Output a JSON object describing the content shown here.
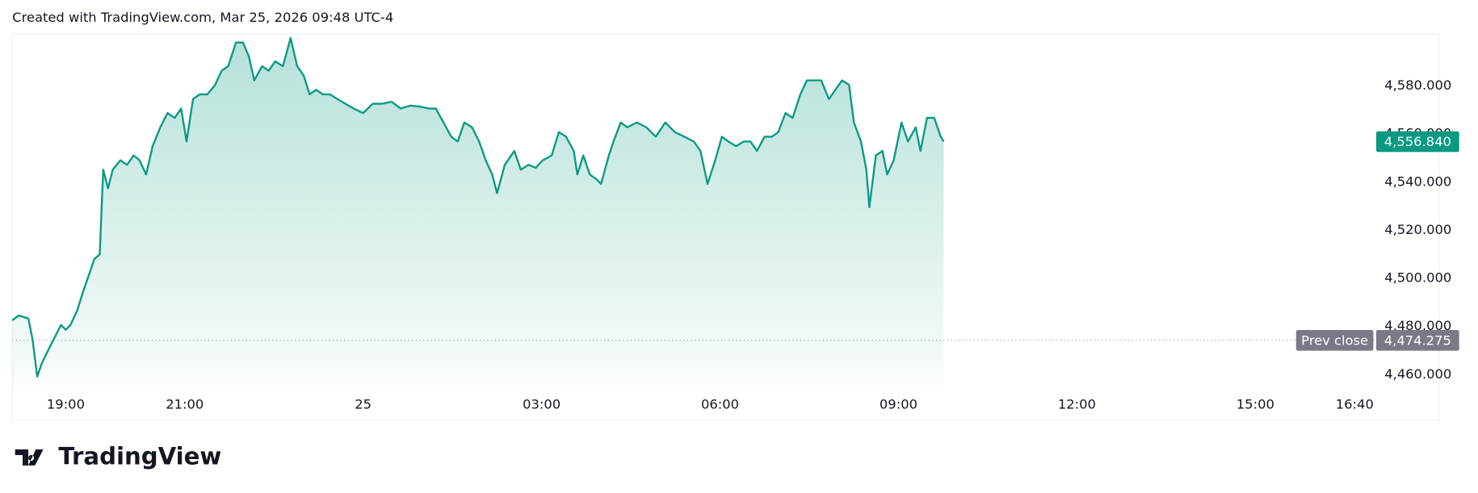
{
  "chart_data": {
    "type": "area-line",
    "title": "Created with TradingView.com, Mar 25, 2026 09:48 UTC-4",
    "brand": "TradingView",
    "color": "#089981",
    "grid": false,
    "xlim": [
      18.1,
      41.0
    ],
    "ylim": [
      4454,
      4601.5
    ],
    "xticks": [
      {
        "value": 19,
        "label": "19:00"
      },
      {
        "value": 21,
        "label": "21:00"
      },
      {
        "value": 24,
        "label": "25"
      },
      {
        "value": 27,
        "label": "03:00"
      },
      {
        "value": 30,
        "label": "06:00"
      },
      {
        "value": 33,
        "label": "09:00"
      },
      {
        "value": 36,
        "label": "12:00"
      },
      {
        "value": 39,
        "label": "15:00"
      },
      {
        "value": 40.67,
        "label": "16:40"
      }
    ],
    "yticks": [
      {
        "value": 4460,
        "label": "4,460.000"
      },
      {
        "value": 4480,
        "label": "4,480.000"
      },
      {
        "value": 4500,
        "label": "4,500.000"
      },
      {
        "value": 4520,
        "label": "4,520.000"
      },
      {
        "value": 4540,
        "label": "4,540.000"
      },
      {
        "value": 4560,
        "label": "4,560.000"
      },
      {
        "value": 4580,
        "label": "4,580.000"
      }
    ],
    "last_price": {
      "value": 4556.84,
      "label": "4,556.840"
    },
    "prev_close": {
      "name": "Prev close",
      "value": 4474.275,
      "label": "4,474.275"
    },
    "x": [
      18.1,
      18.21,
      18.37,
      18.44,
      18.52,
      18.6,
      18.68,
      18.76,
      18.84,
      18.92,
      19.0,
      19.08,
      19.19,
      19.29,
      19.4,
      19.48,
      19.57,
      19.63,
      19.71,
      19.79,
      19.92,
      20.03,
      20.14,
      20.24,
      20.35,
      20.46,
      20.59,
      20.71,
      20.83,
      20.94,
      21.03,
      21.14,
      21.25,
      21.38,
      21.51,
      21.62,
      21.73,
      21.86,
      21.98,
      22.08,
      22.17,
      22.3,
      22.41,
      22.52,
      22.65,
      22.78,
      22.89,
      23.0,
      23.1,
      23.21,
      23.32,
      23.44,
      23.57,
      23.7,
      23.84,
      24.0,
      24.16,
      24.32,
      24.48,
      24.63,
      24.79,
      24.95,
      25.11,
      25.22,
      25.35,
      25.48,
      25.59,
      25.7,
      25.83,
      25.95,
      26.06,
      26.17,
      26.25,
      26.38,
      26.54,
      26.65,
      26.78,
      26.9,
      27.02,
      27.17,
      27.29,
      27.41,
      27.54,
      27.6,
      27.7,
      27.81,
      27.92,
      28.0,
      28.13,
      28.21,
      28.33,
      28.44,
      28.6,
      28.76,
      28.92,
      29.08,
      29.24,
      29.4,
      29.56,
      29.67,
      29.79,
      29.92,
      30.03,
      30.14,
      30.27,
      30.4,
      30.51,
      30.62,
      30.75,
      30.87,
      30.98,
      31.1,
      31.22,
      31.35,
      31.46,
      31.57,
      31.7,
      31.83,
      31.94,
      32.05,
      32.17,
      32.25,
      32.37,
      32.46,
      32.51,
      32.62,
      32.73,
      32.81,
      32.92,
      33.05,
      33.16,
      33.29,
      33.37,
      33.48,
      33.6,
      33.71,
      33.76
    ],
    "values": [
      4482.6,
      4484.6,
      4483.4,
      4474.8,
      4459.2,
      4465.0,
      4469.0,
      4472.9,
      4476.8,
      4480.7,
      4478.7,
      4480.7,
      4486.6,
      4494.4,
      4502.2,
      4508.1,
      4510.0,
      4545.2,
      4537.4,
      4545.2,
      4549.1,
      4547.2,
      4551.1,
      4549.1,
      4543.2,
      4555.0,
      4562.8,
      4568.7,
      4566.7,
      4570.6,
      4556.9,
      4574.5,
      4576.5,
      4576.5,
      4580.4,
      4586.3,
      4588.2,
      4598.0,
      4598.0,
      4592.1,
      4582.3,
      4588.2,
      4586.3,
      4590.2,
      4588.2,
      4599.9,
      4588.2,
      4584.3,
      4576.5,
      4578.4,
      4576.5,
      4576.5,
      4574.5,
      4572.6,
      4570.6,
      4568.7,
      4572.6,
      4572.6,
      4573.4,
      4570.6,
      4571.8,
      4571.4,
      4570.6,
      4570.6,
      4564.8,
      4558.9,
      4556.9,
      4564.8,
      4562.8,
      4556.9,
      4549.1,
      4543.2,
      4535.4,
      4547.2,
      4553.0,
      4545.2,
      4547.2,
      4546.0,
      4549.1,
      4551.1,
      4560.8,
      4558.9,
      4553.0,
      4543.2,
      4551.1,
      4543.2,
      4541.3,
      4539.3,
      4551.1,
      4556.9,
      4564.8,
      4562.8,
      4564.8,
      4562.8,
      4558.9,
      4564.8,
      4560.8,
      4558.9,
      4556.9,
      4553.0,
      4539.3,
      4549.1,
      4558.9,
      4556.9,
      4555.0,
      4556.9,
      4556.9,
      4553.0,
      4558.9,
      4558.9,
      4560.8,
      4568.7,
      4566.7,
      4576.5,
      4582.3,
      4582.3,
      4582.3,
      4574.5,
      4578.4,
      4582.3,
      4580.4,
      4564.8,
      4556.9,
      4545.2,
      4529.6,
      4551.1,
      4553.0,
      4543.2,
      4549.1,
      4564.8,
      4556.9,
      4562.8,
      4553.0,
      4566.7,
      4566.7,
      4558.9,
      4556.84
    ]
  }
}
